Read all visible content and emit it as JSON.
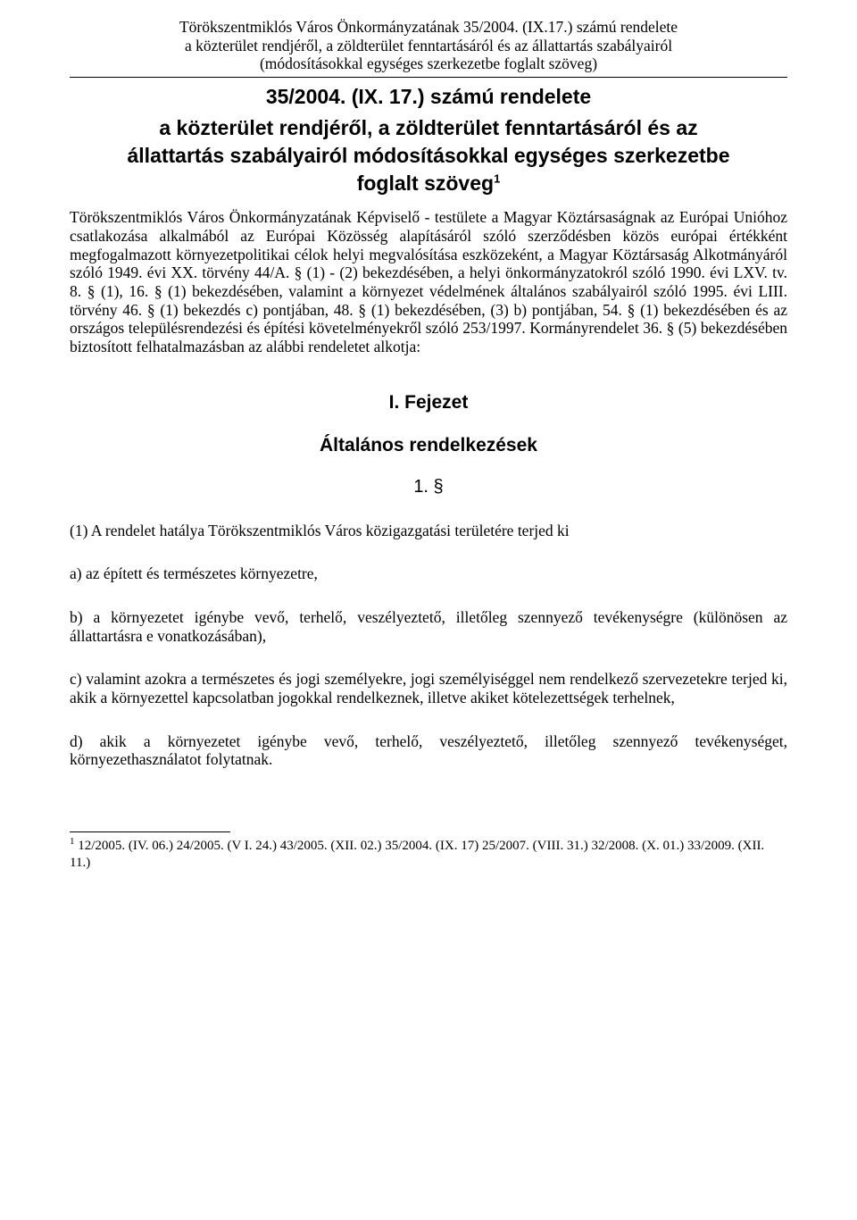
{
  "header": {
    "line1": "Törökszentmiklós Város Önkormányzatának 35/2004. (IX.17.) számú rendelete",
    "line2": "a közterület rendjéről, a zöldterület fenntartásáról és az állattartás szabályairól",
    "line3": "(módosításokkal egységes szerkezetbe foglalt szöveg)"
  },
  "title": {
    "number": "35/2004. (IX. 17.) számú rendelete",
    "line1": "a közterület rendjéről, a zöldterület fenntartásáról és az",
    "line2_part1": "állattartás szabályairól módosításokkal egységes szerkezetbe",
    "line3_part1": "foglalt szöveg",
    "footnote_ref": "1"
  },
  "preamble": "Törökszentmiklós Város Önkormányzatának Képviselő - testülete a Magyar Köztársaságnak az Európai Unióhoz csatlakozása alkalmából az Európai Közösség alapításáról szóló szerződésben közös európai értékként megfogalmazott környezetpolitikai célok helyi megvalósítása eszközeként,\na Magyar Köztársaság Alkotmányáról szóló 1949. évi XX. törvény  44/A. § (1) - (2) bekezdésében, a helyi önkormányzatokról szóló 1990. évi LXV. tv. 8. § (1), 16. § (1) bekezdésében, valamint a környezet védelmének általános szabályairól szóló 1995. évi LIII. törvény 46. § (1) bekezdés c) pontjában, 48. § (1) bekezdésében, (3) b) pontjában, 54. § (1) bekezdésében és az országos településrendezési és építési követelményekről szóló 253/1997. Kormányrendelet 36. § (5) bekezdésében biztosított felhatalmazásban az alábbi rendeletet alkotja:",
  "chapter": "I. Fejezet",
  "section_title": "Általános rendelkezések",
  "section_num": "1. §",
  "paragraphs": {
    "p1": "(1) A rendelet hatálya Törökszentmiklós Város közigazgatási területére terjed ki",
    "pa": "a) az épített és természetes környezetre,",
    "pb": "b) a környezetet igénybe vevő, terhelő, veszélyeztető, illetőleg szennyező tevékenységre (különösen az állattartásra e vonatkozásában),",
    "pc": "c) valamint azokra a természetes és jogi személyekre, jogi személyiséggel nem rendelkező szervezetekre terjed ki, akik a környezettel kapcsolatban jogokkal rendelkeznek, illetve akiket kötelezettségek terhelnek,",
    "pd": "d) akik a környezetet igénybe vevő, terhelő, veszélyeztető, illetőleg szennyező tevékenységet, környezethasználatot folytatnak."
  },
  "footnote": {
    "ref": "1",
    "text": " 12/2005. (IV. 06.) 24/2005. (V I. 24.) 43/2005. (XII. 02.) 35/2004. (IX. 17) 25/2007. (VIII. 31.) 32/2008. (X. 01.) 33/2009. (XII. 11.)"
  }
}
